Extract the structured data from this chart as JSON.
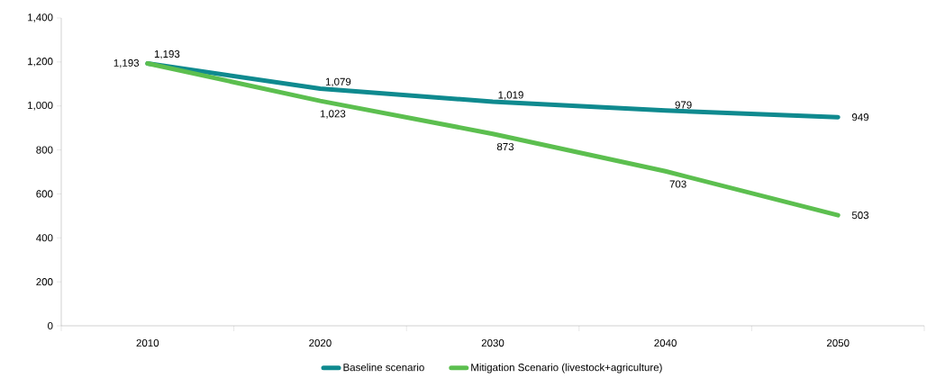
{
  "chart_data": {
    "type": "line",
    "categories": [
      "2010",
      "2020",
      "2030",
      "2040",
      "2050"
    ],
    "series": [
      {
        "name": "Baseline scenario",
        "color": "#0f8a8f",
        "values": [
          1193,
          1079,
          1019,
          979,
          949
        ],
        "value_labels": [
          "1,193",
          "1,079",
          "1,019",
          "979",
          "949"
        ]
      },
      {
        "name": "Mitigation Scenario (livestock+agriculture)",
        "color": "#5cbf4f",
        "values": [
          1193,
          1023,
          873,
          703,
          503
        ],
        "value_labels": [
          "1,193",
          "1,023",
          "873",
          "703",
          "503"
        ]
      }
    ],
    "ylim": [
      0,
      1400
    ],
    "yticks": [
      0,
      200,
      400,
      600,
      800,
      {
        "value": 1000,
        "label": "1,000"
      },
      {
        "value": 1200,
        "label": "1,200"
      },
      {
        "value": 1400,
        "label": "1,400"
      }
    ],
    "grid": false,
    "legend": "bottom",
    "marker": "none",
    "line_style": "solid"
  }
}
